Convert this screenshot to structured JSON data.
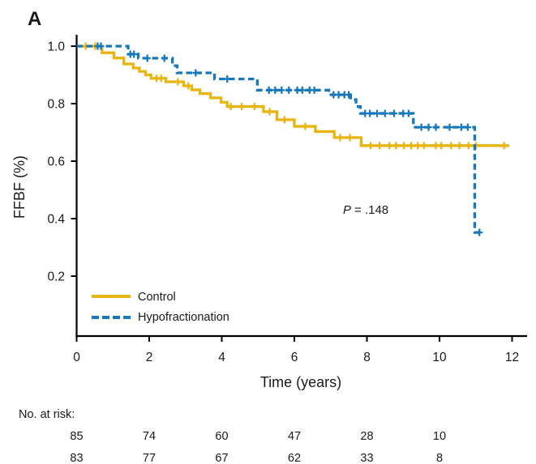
{
  "panel_label": "A",
  "chart_data": {
    "type": "line",
    "subtype": "kaplan-meier-step",
    "title": "",
    "xlabel": "Time (years)",
    "ylabel": "FFBF (%)",
    "xlim": [
      0,
      12.4
    ],
    "ylim": [
      0,
      1.02
    ],
    "grid": false,
    "legend_position": "inside-lower-left",
    "x_ticks": [
      0,
      2,
      4,
      6,
      8,
      10,
      12
    ],
    "x_tick_labels": [
      "0",
      "2",
      "4",
      "6",
      "8",
      "10",
      "12"
    ],
    "y_ticks": [
      1.0,
      0.8,
      0.6,
      0.4,
      0.2
    ],
    "y_tick_labels": [
      "1.0",
      "0.8",
      "0.6",
      "0.4",
      "0.2"
    ],
    "p_value": "P = .148",
    "p_stat": "P",
    "p_rest": "= .148",
    "series": [
      {
        "name": "Control",
        "color": "#E8B510",
        "line": "solid",
        "steps": [
          [
            0,
            1.0
          ],
          [
            0.7,
            0.977
          ],
          [
            1.03,
            0.959
          ],
          [
            1.3,
            0.938
          ],
          [
            1.56,
            0.924
          ],
          [
            1.73,
            0.912
          ],
          [
            1.9,
            0.9
          ],
          [
            2.05,
            0.888
          ],
          [
            2.46,
            0.876
          ],
          [
            2.95,
            0.862
          ],
          [
            3.17,
            0.848
          ],
          [
            3.4,
            0.835
          ],
          [
            3.69,
            0.82
          ],
          [
            3.98,
            0.805
          ],
          [
            4.15,
            0.79
          ],
          [
            5.15,
            0.772
          ],
          [
            5.52,
            0.744
          ],
          [
            6.0,
            0.721
          ],
          [
            6.58,
            0.703
          ],
          [
            7.1,
            0.682
          ],
          [
            7.84,
            0.654
          ]
        ],
        "end_x": 11.92,
        "censors": [
          0.25,
          0.51,
          2.2,
          2.33,
          2.79,
          3.08,
          4.25,
          4.55,
          4.9,
          5.32,
          5.73,
          6.3,
          7.26,
          7.53,
          8.1,
          8.35,
          8.62,
          8.8,
          9.02,
          9.22,
          9.4,
          9.57,
          9.9,
          10.05,
          10.32,
          10.55,
          10.8,
          11.0,
          11.78
        ]
      },
      {
        "name": "Hypofractionation",
        "color": "#1778BE",
        "line": "dashed",
        "steps": [
          [
            0,
            1.0
          ],
          [
            1.42,
            0.972
          ],
          [
            1.7,
            0.958
          ],
          [
            2.64,
            0.932
          ],
          [
            2.77,
            0.907
          ],
          [
            3.8,
            0.886
          ],
          [
            4.98,
            0.847
          ],
          [
            6.95,
            0.831
          ],
          [
            7.55,
            0.814
          ],
          [
            7.7,
            0.79
          ],
          [
            7.82,
            0.766
          ],
          [
            9.28,
            0.718
          ],
          [
            10.97,
            0.352
          ]
        ],
        "end_x": 11.2,
        "censors": [
          0.58,
          0.67,
          1.48,
          1.58,
          1.95,
          2.42,
          3.28,
          4.15,
          5.3,
          5.47,
          5.65,
          5.85,
          6.08,
          6.22,
          6.42,
          6.55,
          7.08,
          7.22,
          7.38,
          7.5,
          7.95,
          8.08,
          8.28,
          8.5,
          8.75,
          9.0,
          9.15,
          9.5,
          9.7,
          9.9,
          10.28,
          10.6,
          10.78,
          11.1
        ]
      }
    ]
  },
  "risk_table": {
    "label": "No. at risk:",
    "times": [
      0,
      2,
      4,
      6,
      8,
      10
    ],
    "rows": [
      [
        "85",
        "74",
        "60",
        "47",
        "28",
        "10"
      ],
      [
        "83",
        "77",
        "67",
        "62",
        "33",
        "8"
      ]
    ]
  }
}
